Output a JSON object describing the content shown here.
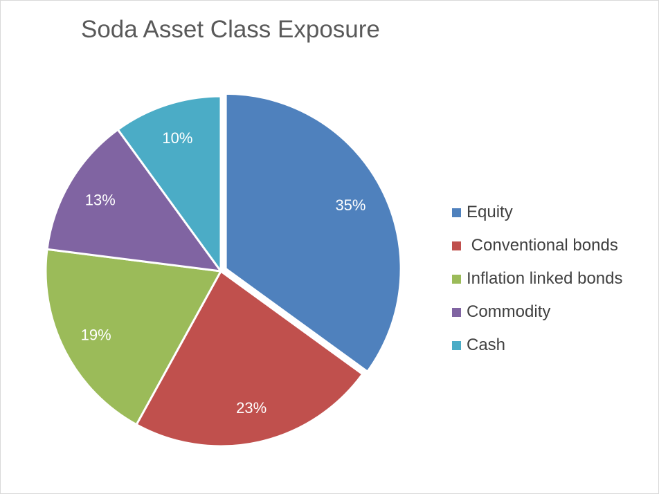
{
  "chart_data": {
    "type": "pie",
    "title": "Soda Asset Class Exposure",
    "categories": [
      "Equity",
      " Conventional bonds",
      "Inflation linked bonds",
      "Commodity",
      "Cash"
    ],
    "values": [
      35,
      23,
      19,
      13,
      10
    ],
    "labels": [
      "35%",
      "23%",
      "19%",
      "13%",
      "10%"
    ],
    "colors": [
      "#4f81bd",
      "#c0504d",
      "#9bbb59",
      "#8064a2",
      "#4bacc6"
    ],
    "exploded": [
      "Equity"
    ],
    "legend_position": "right"
  }
}
